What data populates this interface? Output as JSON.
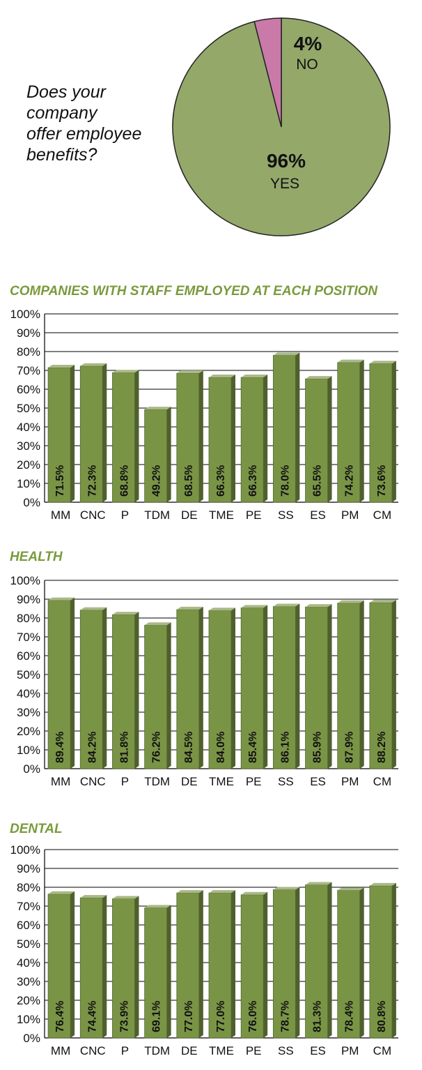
{
  "pie": {
    "question_lines": [
      "Does your",
      "company",
      "offer employee",
      "benefits?"
    ],
    "colors": {
      "yes": "#94a86a",
      "no": "#c97aa8"
    }
  },
  "chart_data": [
    {
      "type": "pie",
      "slices": [
        {
          "label": "YES",
          "value": 96,
          "value_label": "96%"
        },
        {
          "label": "NO",
          "value": 4,
          "value_label": "4%"
        }
      ]
    },
    {
      "type": "bar",
      "title": "COMPANIES WITH STAFF EMPLOYED AT EACH POSITION",
      "categories": [
        "MM",
        "CNC",
        "P",
        "TDM",
        "DE",
        "TME",
        "PE",
        "SS",
        "ES",
        "PM",
        "CM"
      ],
      "values": [
        71.5,
        72.3,
        68.8,
        49.2,
        68.5,
        66.3,
        66.3,
        78.0,
        65.5,
        74.2,
        73.6
      ],
      "value_labels": [
        "71.5%",
        "72.3%",
        "68.8%",
        "49.2%",
        "68.5%",
        "66.3%",
        "66.3%",
        "78.0%",
        "65.5%",
        "74.2%",
        "73.6%"
      ],
      "ylim": [
        0,
        100
      ],
      "yticks": [
        "0%",
        "10%",
        "20%",
        "30%",
        "40%",
        "50%",
        "60%",
        "70%",
        "80%",
        "90%",
        "100%"
      ],
      "grid": true,
      "bar_color": "#7a9446"
    },
    {
      "type": "bar",
      "title": "HEALTH",
      "categories": [
        "MM",
        "CNC",
        "P",
        "TDM",
        "DE",
        "TME",
        "PE",
        "SS",
        "ES",
        "PM",
        "CM"
      ],
      "values": [
        89.4,
        84.2,
        81.8,
        76.2,
        84.5,
        84.0,
        85.4,
        86.1,
        85.9,
        87.9,
        88.2
      ],
      "value_labels": [
        "89.4%",
        "84.2%",
        "81.8%",
        "76.2%",
        "84.5%",
        "84.0%",
        "85.4%",
        "86.1%",
        "85.9%",
        "87.9%",
        "88.2%"
      ],
      "ylim": [
        0,
        100
      ],
      "yticks": [
        "0%",
        "10%",
        "20%",
        "30%",
        "40%",
        "50%",
        "60%",
        "70%",
        "80%",
        "90%",
        "100%"
      ],
      "grid": true,
      "bar_color": "#7a9446"
    },
    {
      "type": "bar",
      "title": "DENTAL",
      "categories": [
        "MM",
        "CNC",
        "P",
        "TDM",
        "DE",
        "TME",
        "PE",
        "SS",
        "ES",
        "PM",
        "CM"
      ],
      "values": [
        76.4,
        74.4,
        73.9,
        69.1,
        77.0,
        77.0,
        76.0,
        78.7,
        81.3,
        78.4,
        80.8
      ],
      "value_labels": [
        "76.4%",
        "74.4%",
        "73.9%",
        "69.1%",
        "77.0%",
        "77.0%",
        "76.0%",
        "78.7%",
        "81.3%",
        "78.4%",
        "80.8%"
      ],
      "ylim": [
        0,
        100
      ],
      "yticks": [
        "0%",
        "10%",
        "20%",
        "30%",
        "40%",
        "50%",
        "60%",
        "70%",
        "80%",
        "90%",
        "100%"
      ],
      "grid": true,
      "bar_color": "#7a9446"
    }
  ]
}
